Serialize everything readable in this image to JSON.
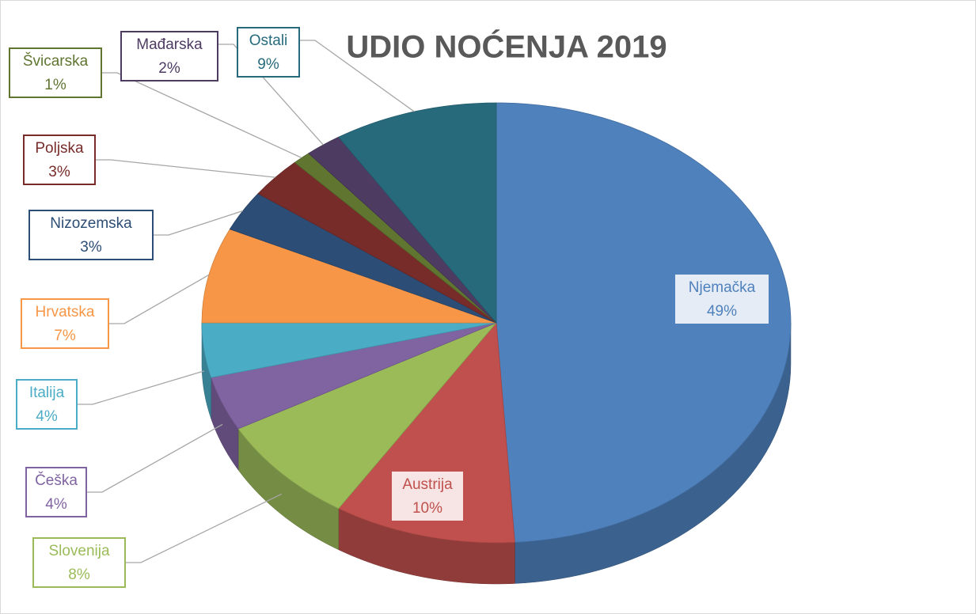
{
  "chart_data": {
    "type": "pie",
    "title": "UDIO NOĆENJA 2019",
    "categories": [
      "Njemačka",
      "Austrija",
      "Slovenija",
      "Češka",
      "Italija",
      "Hrvatska",
      "Nizozemska",
      "Poljska",
      "Švicarska",
      "Mađarska",
      "Ostali"
    ],
    "values": [
      49,
      10,
      8,
      4,
      4,
      7,
      3,
      3,
      1,
      2,
      9
    ],
    "value_labels": [
      "49%",
      "10%",
      "8%",
      "4%",
      "4%",
      "7%",
      "3%",
      "3%",
      "1%",
      "2%",
      "9%"
    ],
    "colors": [
      "#4f81bd",
      "#c0504d",
      "#9bbb59",
      "#8064a2",
      "#4bacc6",
      "#f79646",
      "#2c4d75",
      "#772c2a",
      "#5f7530",
      "#4d3b62",
      "#276a7c"
    ]
  }
}
